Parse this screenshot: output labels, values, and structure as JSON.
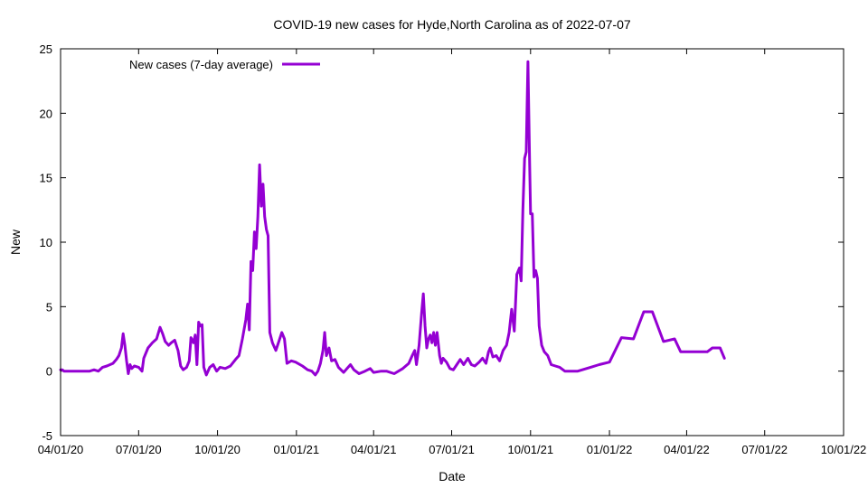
{
  "chart_data": {
    "type": "line",
    "title": "COVID-19 new cases for Hyde,North Carolina as of 2022-07-07",
    "xlabel": "Date",
    "ylabel": "New",
    "xlim": [
      "2020-04-01",
      "2022-10-01"
    ],
    "ylim": [
      -5,
      25
    ],
    "x_ticks": [
      {
        "date": "2020-04-01",
        "label": "04/01/20"
      },
      {
        "date": "2020-07-01",
        "label": "07/01/20"
      },
      {
        "date": "2020-10-01",
        "label": "10/01/20"
      },
      {
        "date": "2021-01-01",
        "label": "01/01/21"
      },
      {
        "date": "2021-04-01",
        "label": "04/01/21"
      },
      {
        "date": "2021-07-01",
        "label": "07/01/21"
      },
      {
        "date": "2021-10-01",
        "label": "10/01/21"
      },
      {
        "date": "2022-01-01",
        "label": "01/01/22"
      },
      {
        "date": "2022-04-01",
        "label": "04/01/22"
      },
      {
        "date": "2022-07-01",
        "label": "07/01/22"
      },
      {
        "date": "2022-10-01",
        "label": "10/01/22"
      }
    ],
    "y_ticks": [
      {
        "value": -5,
        "label": "-5"
      },
      {
        "value": 0,
        "label": "0"
      },
      {
        "value": 5,
        "label": "5"
      },
      {
        "value": 10,
        "label": "10"
      },
      {
        "value": 15,
        "label": "15"
      },
      {
        "value": 20,
        "label": "20"
      },
      {
        "value": 25,
        "label": "25"
      }
    ],
    "grid": false,
    "legend": {
      "placement": "top-left"
    },
    "series": [
      {
        "name": "New cases (7-day average)",
        "color": "#9400d3",
        "points": [
          [
            "2020-04-01",
            0.1
          ],
          [
            "2020-04-03",
            0.1
          ],
          [
            "2020-04-05",
            0.0
          ],
          [
            "2020-04-15",
            0.0
          ],
          [
            "2020-04-25",
            0.0
          ],
          [
            "2020-05-05",
            0.0
          ],
          [
            "2020-05-10",
            0.1
          ],
          [
            "2020-05-15",
            0.0
          ],
          [
            "2020-05-20",
            0.3
          ],
          [
            "2020-05-25",
            0.4
          ],
          [
            "2020-06-01",
            0.6
          ],
          [
            "2020-06-05",
            0.9
          ],
          [
            "2020-06-08",
            1.2
          ],
          [
            "2020-06-11",
            1.8
          ],
          [
            "2020-06-13",
            2.9
          ],
          [
            "2020-06-15",
            2.0
          ],
          [
            "2020-06-17",
            0.8
          ],
          [
            "2020-06-19",
            -0.2
          ],
          [
            "2020-06-21",
            0.5
          ],
          [
            "2020-06-23",
            0.2
          ],
          [
            "2020-06-26",
            0.4
          ],
          [
            "2020-07-01",
            0.3
          ],
          [
            "2020-07-05",
            0.0
          ],
          [
            "2020-07-07",
            1.0
          ],
          [
            "2020-07-12",
            1.8
          ],
          [
            "2020-07-17",
            2.2
          ],
          [
            "2020-07-22",
            2.5
          ],
          [
            "2020-07-26",
            3.4
          ],
          [
            "2020-07-29",
            2.9
          ],
          [
            "2020-08-01",
            2.3
          ],
          [
            "2020-08-05",
            2.0
          ],
          [
            "2020-08-08",
            2.2
          ],
          [
            "2020-08-12",
            2.4
          ],
          [
            "2020-08-16",
            1.6
          ],
          [
            "2020-08-19",
            0.4
          ],
          [
            "2020-08-22",
            0.1
          ],
          [
            "2020-08-26",
            0.3
          ],
          [
            "2020-08-29",
            0.8
          ],
          [
            "2020-08-31",
            2.6
          ],
          [
            "2020-09-03",
            2.2
          ],
          [
            "2020-09-05",
            2.8
          ],
          [
            "2020-09-07",
            0.5
          ],
          [
            "2020-09-09",
            3.8
          ],
          [
            "2020-09-11",
            3.5
          ],
          [
            "2020-09-13",
            3.6
          ],
          [
            "2020-09-15",
            0.3
          ],
          [
            "2020-09-18",
            -0.3
          ],
          [
            "2020-09-22",
            0.3
          ],
          [
            "2020-09-26",
            0.5
          ],
          [
            "2020-09-30",
            0.0
          ],
          [
            "2020-10-04",
            0.3
          ],
          [
            "2020-10-10",
            0.2
          ],
          [
            "2020-10-16",
            0.4
          ],
          [
            "2020-10-22",
            0.9
          ],
          [
            "2020-10-26",
            1.2
          ],
          [
            "2020-10-30",
            2.5
          ],
          [
            "2020-11-03",
            4.0
          ],
          [
            "2020-11-05",
            5.2
          ],
          [
            "2020-11-07",
            3.2
          ],
          [
            "2020-11-09",
            8.5
          ],
          [
            "2020-11-11",
            7.8
          ],
          [
            "2020-11-13",
            10.8
          ],
          [
            "2020-11-15",
            9.5
          ],
          [
            "2020-11-17",
            12.0
          ],
          [
            "2020-11-19",
            16.0
          ],
          [
            "2020-11-21",
            12.8
          ],
          [
            "2020-11-23",
            14.5
          ],
          [
            "2020-11-25",
            12.0
          ],
          [
            "2020-11-27",
            11.0
          ],
          [
            "2020-11-29",
            10.5
          ],
          [
            "2020-12-01",
            3.0
          ],
          [
            "2020-12-04",
            2.2
          ],
          [
            "2020-12-08",
            1.6
          ],
          [
            "2020-12-12",
            2.4
          ],
          [
            "2020-12-15",
            3.0
          ],
          [
            "2020-12-18",
            2.5
          ],
          [
            "2020-12-21",
            0.6
          ],
          [
            "2020-12-26",
            0.8
          ],
          [
            "2020-12-31",
            0.7
          ],
          [
            "2021-01-08",
            0.4
          ],
          [
            "2021-01-14",
            0.1
          ],
          [
            "2021-01-19",
            0.0
          ],
          [
            "2021-01-23",
            -0.3
          ],
          [
            "2021-01-26",
            0.0
          ],
          [
            "2021-01-29",
            0.6
          ],
          [
            "2021-02-01",
            1.6
          ],
          [
            "2021-02-03",
            3.0
          ],
          [
            "2021-02-05",
            1.2
          ],
          [
            "2021-02-08",
            1.8
          ],
          [
            "2021-02-11",
            0.8
          ],
          [
            "2021-02-15",
            0.9
          ],
          [
            "2021-02-19",
            0.3
          ],
          [
            "2021-02-25",
            -0.1
          ],
          [
            "2021-03-01",
            0.2
          ],
          [
            "2021-03-05",
            0.5
          ],
          [
            "2021-03-09",
            0.1
          ],
          [
            "2021-03-15",
            -0.2
          ],
          [
            "2021-03-22",
            0.0
          ],
          [
            "2021-03-28",
            0.2
          ],
          [
            "2021-04-01",
            -0.1
          ],
          [
            "2021-04-10",
            0.0
          ],
          [
            "2021-04-16",
            0.0
          ],
          [
            "2021-04-25",
            -0.2
          ],
          [
            "2021-05-05",
            0.2
          ],
          [
            "2021-05-12",
            0.6
          ],
          [
            "2021-05-16",
            1.2
          ],
          [
            "2021-05-19",
            1.6
          ],
          [
            "2021-05-21",
            0.5
          ],
          [
            "2021-05-24",
            2.0
          ],
          [
            "2021-05-27",
            4.5
          ],
          [
            "2021-05-29",
            6.0
          ],
          [
            "2021-05-31",
            3.5
          ],
          [
            "2021-06-02",
            1.8
          ],
          [
            "2021-06-04",
            2.5
          ],
          [
            "2021-06-06",
            2.8
          ],
          [
            "2021-06-08",
            2.2
          ],
          [
            "2021-06-10",
            3.0
          ],
          [
            "2021-06-12",
            2.0
          ],
          [
            "2021-06-14",
            3.0
          ],
          [
            "2021-06-17",
            1.2
          ],
          [
            "2021-06-19",
            0.6
          ],
          [
            "2021-06-21",
            1.0
          ],
          [
            "2021-06-25",
            0.7
          ],
          [
            "2021-06-29",
            0.2
          ],
          [
            "2021-07-03",
            0.1
          ],
          [
            "2021-07-07",
            0.5
          ],
          [
            "2021-07-11",
            0.9
          ],
          [
            "2021-07-15",
            0.5
          ],
          [
            "2021-07-20",
            1.0
          ],
          [
            "2021-07-24",
            0.5
          ],
          [
            "2021-07-28",
            0.4
          ],
          [
            "2021-08-02",
            0.7
          ],
          [
            "2021-08-06",
            1.0
          ],
          [
            "2021-08-10",
            0.6
          ],
          [
            "2021-08-13",
            1.5
          ],
          [
            "2021-08-15",
            1.8
          ],
          [
            "2021-08-18",
            1.1
          ],
          [
            "2021-08-22",
            1.2
          ],
          [
            "2021-08-26",
            0.8
          ],
          [
            "2021-08-30",
            1.6
          ],
          [
            "2021-09-03",
            2.0
          ],
          [
            "2021-09-06",
            3.0
          ],
          [
            "2021-09-09",
            4.8
          ],
          [
            "2021-09-12",
            3.1
          ],
          [
            "2021-09-15",
            7.5
          ],
          [
            "2021-09-18",
            8.0
          ],
          [
            "2021-09-20",
            7.0
          ],
          [
            "2021-09-22",
            12.5
          ],
          [
            "2021-09-24",
            16.5
          ],
          [
            "2021-09-26",
            17.0
          ],
          [
            "2021-09-28",
            24.0
          ],
          [
            "2021-09-30",
            16.0
          ],
          [
            "2021-10-01",
            12.2
          ],
          [
            "2021-10-03",
            12.2
          ],
          [
            "2021-10-05",
            7.3
          ],
          [
            "2021-10-07",
            7.8
          ],
          [
            "2021-10-09",
            7.2
          ],
          [
            "2021-10-11",
            3.5
          ],
          [
            "2021-10-14",
            2.0
          ],
          [
            "2021-10-17",
            1.5
          ],
          [
            "2021-10-21",
            1.2
          ],
          [
            "2021-10-25",
            0.5
          ],
          [
            "2021-10-30",
            0.4
          ],
          [
            "2021-11-04",
            0.3
          ],
          [
            "2021-11-10",
            0.0
          ],
          [
            "2021-11-25",
            0.0
          ],
          [
            "2021-12-10",
            0.3
          ],
          [
            "2021-12-20",
            0.5
          ],
          [
            "2022-01-01",
            0.7
          ],
          [
            "2022-01-15",
            2.6
          ],
          [
            "2022-01-29",
            2.5
          ],
          [
            "2022-02-10",
            4.6
          ],
          [
            "2022-02-20",
            4.6
          ],
          [
            "2022-03-05",
            2.3
          ],
          [
            "2022-03-18",
            2.5
          ],
          [
            "2022-03-25",
            1.5
          ],
          [
            "2022-04-10",
            1.5
          ],
          [
            "2022-04-25",
            1.5
          ],
          [
            "2022-05-01",
            1.8
          ],
          [
            "2022-05-10",
            1.8
          ],
          [
            "2022-05-15",
            1.0
          ]
        ]
      }
    ]
  }
}
